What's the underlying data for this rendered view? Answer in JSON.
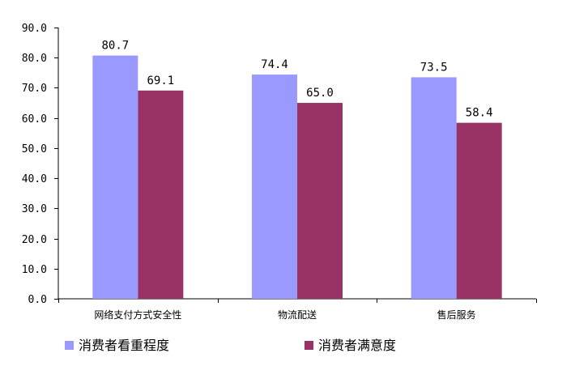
{
  "chart_data": {
    "type": "bar",
    "title": "",
    "xlabel": "",
    "ylabel": "",
    "categories": [
      "网络支付方式安全性",
      "物流配送",
      "售后服务"
    ],
    "series": [
      {
        "name": "消费者看重程度",
        "values": [
          80.7,
          74.4,
          73.5
        ],
        "color": "#9999ff"
      },
      {
        "name": "消费者满意度",
        "values": [
          69.1,
          65.0,
          58.4
        ],
        "color": "#993366"
      }
    ],
    "ylim": [
      0,
      90
    ],
    "ytick_step": 10,
    "ytick_labels": [
      "0.0",
      "10.0",
      "20.0",
      "30.0",
      "40.0",
      "50.0",
      "60.0",
      "70.0",
      "80.0",
      "90.0"
    ],
    "data_labels": [
      [
        "80.7",
        "74.4",
        "73.5"
      ],
      [
        "69.1",
        "65.0",
        "58.4"
      ]
    ],
    "grid": false,
    "legend_position": "bottom"
  }
}
